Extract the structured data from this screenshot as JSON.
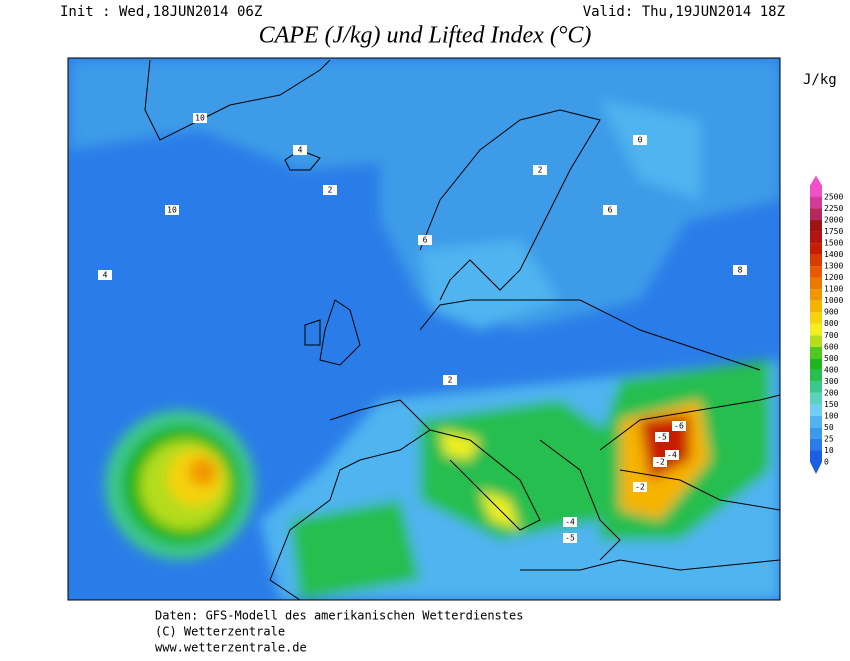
{
  "header": {
    "init": "Init : Wed,18JUN2014 06Z",
    "valid": "Valid: Thu,19JUN2014 18Z",
    "title": "CAPE (J/kg) und Lifted Index (°C)"
  },
  "legend": {
    "unit": "J/kg",
    "levels": [
      0,
      10,
      25,
      50,
      100,
      150,
      200,
      300,
      400,
      500,
      600,
      700,
      800,
      900,
      1000,
      1100,
      1200,
      1300,
      1400,
      1500,
      1750,
      2000,
      2250,
      2500
    ],
    "colors": [
      "#1c5fe3",
      "#2a7de8",
      "#3c9be8",
      "#50b4f0",
      "#6ecdf5",
      "#5ad2be",
      "#3cc88c",
      "#28be50",
      "#1eb41e",
      "#50c81e",
      "#b4dc1e",
      "#f0f01e",
      "#f5d20a",
      "#f5b400",
      "#f09600",
      "#eb7800",
      "#e65a00",
      "#d73c00",
      "#c81e00",
      "#b41414",
      "#a01414",
      "#b4285a",
      "#d23c96",
      "#f050c8"
    ]
  },
  "map_labels": [
    "-6",
    "-5",
    "-4",
    "-4",
    "-5",
    "-2",
    "-2",
    "10",
    "10",
    "8",
    "6",
    "6",
    "4",
    "4",
    "2",
    "2",
    "2",
    "0"
  ],
  "footer": [
    "Daten: GFS-Modell des amerikanischen Wetterdienstes",
    "(C) Wetterzentrale",
    "www.wetterzentrale.de"
  ]
}
